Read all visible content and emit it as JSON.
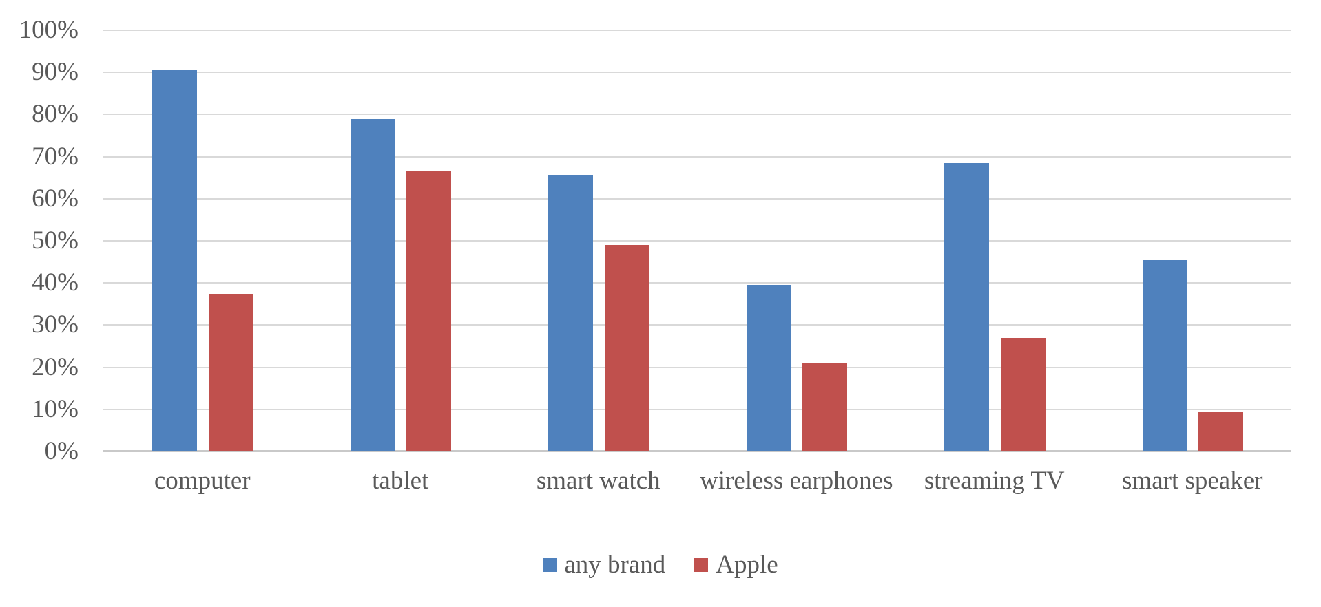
{
  "chart_data": {
    "type": "bar",
    "title": "",
    "categories": [
      "computer",
      "tablet",
      "smart watch",
      "wireless earphones",
      "streaming TV",
      "smart speaker"
    ],
    "series": [
      {
        "name": "any brand",
        "color": "#4f81bd",
        "values": [
          90.5,
          79,
          65.5,
          39.5,
          68.5,
          45.5
        ]
      },
      {
        "name": "Apple",
        "color": "#c0504d",
        "values": [
          37.5,
          66.5,
          49,
          21,
          27,
          9.5
        ]
      }
    ],
    "y_axis": {
      "min": 0,
      "max": 100,
      "step": 10,
      "unit": "%",
      "tick_labels": [
        "0%",
        "10%",
        "20%",
        "30%",
        "40%",
        "50%",
        "60%",
        "70%",
        "80%",
        "90%",
        "100%"
      ]
    },
    "grid": true,
    "legend_position": "bottom"
  },
  "styles": {
    "background": "#ffffff",
    "text_color": "#595959",
    "gridline_color": "#d9d9d9",
    "axis_line_color": "#c9c9c9"
  }
}
